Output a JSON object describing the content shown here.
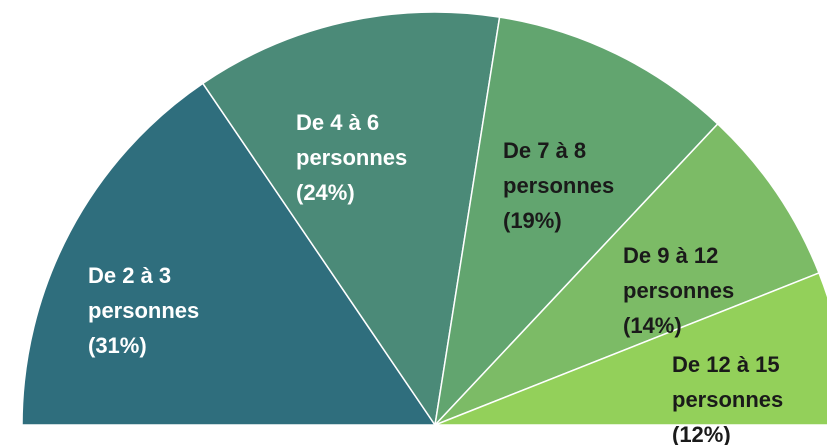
{
  "chart_data": {
    "type": "pie",
    "categories": [
      "De 2 à 3 personnes",
      "De 4 à 6 personnes",
      "De 7 à 8 personnes",
      "De 9 à 12 personnes",
      "De 12 à 15 personnes"
    ],
    "values": [
      31,
      24,
      19,
      14,
      12
    ],
    "value_labels": [
      "(31%)",
      "(24%)",
      "(19%)",
      "(14%)",
      "(12%)"
    ],
    "colors": [
      "#2f6e7d",
      "#4b8a78",
      "#62a56f",
      "#7cbb66",
      "#93d05a"
    ],
    "label_colors": [
      "#ffffff",
      "#ffffff",
      "#1a1a1a",
      "#1a1a1a",
      "#1a1a1a"
    ]
  }
}
